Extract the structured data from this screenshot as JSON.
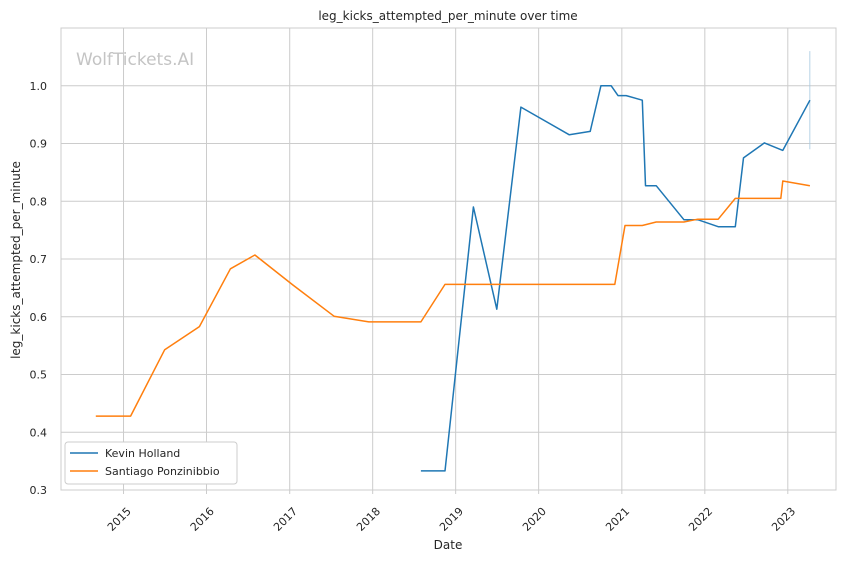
{
  "chart_data": {
    "type": "line",
    "title": "leg_kicks_attempted_per_minute over time",
    "xlabel": "Date",
    "ylabel": "leg_kicks_attempted_per_minute",
    "watermark": "WolfTickets.AI",
    "xlim": [
      "2014-04-01",
      "2023-08-01"
    ],
    "ylim": [
      0.3,
      1.1
    ],
    "x_ticks": [
      {
        "date": "2015-01-01",
        "label": "2015"
      },
      {
        "date": "2016-01-01",
        "label": "2016"
      },
      {
        "date": "2017-01-01",
        "label": "2017"
      },
      {
        "date": "2018-01-01",
        "label": "2018"
      },
      {
        "date": "2019-01-01",
        "label": "2019"
      },
      {
        "date": "2020-01-01",
        "label": "2020"
      },
      {
        "date": "2021-01-01",
        "label": "2021"
      },
      {
        "date": "2022-01-01",
        "label": "2022"
      },
      {
        "date": "2023-01-01",
        "label": "2023"
      }
    ],
    "y_ticks": [
      {
        "value": 0.3,
        "label": "0.3"
      },
      {
        "value": 0.4,
        "label": "0.4"
      },
      {
        "value": 0.5,
        "label": "0.5"
      },
      {
        "value": 0.6,
        "label": "0.6"
      },
      {
        "value": 0.7,
        "label": "0.7"
      },
      {
        "value": 0.8,
        "label": "0.8"
      },
      {
        "value": 0.9,
        "label": "0.9"
      },
      {
        "value": 1.0,
        "label": "1.0"
      }
    ],
    "grid": true,
    "legend_position": "lower-left",
    "series": [
      {
        "name": "Kevin Holland",
        "color": "#1f77b4",
        "points": [
          {
            "x": "2018-08-01",
            "y": 0.333
          },
          {
            "x": "2018-11-15",
            "y": 0.333
          },
          {
            "x": "2019-03-20",
            "y": 0.79
          },
          {
            "x": "2019-07-01",
            "y": 0.613
          },
          {
            "x": "2019-10-15",
            "y": 0.963
          },
          {
            "x": "2020-05-15",
            "y": 0.915
          },
          {
            "x": "2020-08-15",
            "y": 0.921
          },
          {
            "x": "2020-10-01",
            "y": 1.0
          },
          {
            "x": "2020-11-15",
            "y": 1.0
          },
          {
            "x": "2020-12-15",
            "y": 0.983
          },
          {
            "x": "2021-01-20",
            "y": 0.983
          },
          {
            "x": "2021-04-01",
            "y": 0.975
          },
          {
            "x": "2021-04-15",
            "y": 0.827
          },
          {
            "x": "2021-06-01",
            "y": 0.827
          },
          {
            "x": "2021-10-01",
            "y": 0.768
          },
          {
            "x": "2021-12-01",
            "y": 0.768
          },
          {
            "x": "2022-03-01",
            "y": 0.756
          },
          {
            "x": "2022-05-15",
            "y": 0.756
          },
          {
            "x": "2022-06-20",
            "y": 0.875
          },
          {
            "x": "2022-09-20",
            "y": 0.901
          },
          {
            "x": "2022-12-10",
            "y": 0.888
          },
          {
            "x": "2023-04-08",
            "y": 0.975
          }
        ]
      },
      {
        "name": "Santiago Ponzinibbio",
        "color": "#ff7f0e",
        "points": [
          {
            "x": "2014-09-01",
            "y": 0.428
          },
          {
            "x": "2015-02-01",
            "y": 0.428
          },
          {
            "x": "2015-07-01",
            "y": 0.543
          },
          {
            "x": "2015-12-01",
            "y": 0.583
          },
          {
            "x": "2016-04-15",
            "y": 0.683
          },
          {
            "x": "2016-08-01",
            "y": 0.707
          },
          {
            "x": "2017-01-15",
            "y": 0.655
          },
          {
            "x": "2017-07-15",
            "y": 0.601
          },
          {
            "x": "2017-12-15",
            "y": 0.591
          },
          {
            "x": "2018-08-01",
            "y": 0.591
          },
          {
            "x": "2018-11-15",
            "y": 0.656
          },
          {
            "x": "2020-12-01",
            "y": 0.656
          },
          {
            "x": "2021-01-15",
            "y": 0.758
          },
          {
            "x": "2021-04-01",
            "y": 0.758
          },
          {
            "x": "2021-06-01",
            "y": 0.764
          },
          {
            "x": "2021-10-01",
            "y": 0.764
          },
          {
            "x": "2021-12-01",
            "y": 0.769
          },
          {
            "x": "2022-03-01",
            "y": 0.769
          },
          {
            "x": "2022-05-15",
            "y": 0.805
          },
          {
            "x": "2022-12-01",
            "y": 0.805
          },
          {
            "x": "2022-12-10",
            "y": 0.835
          },
          {
            "x": "2023-04-08",
            "y": 0.827
          }
        ]
      }
    ]
  }
}
